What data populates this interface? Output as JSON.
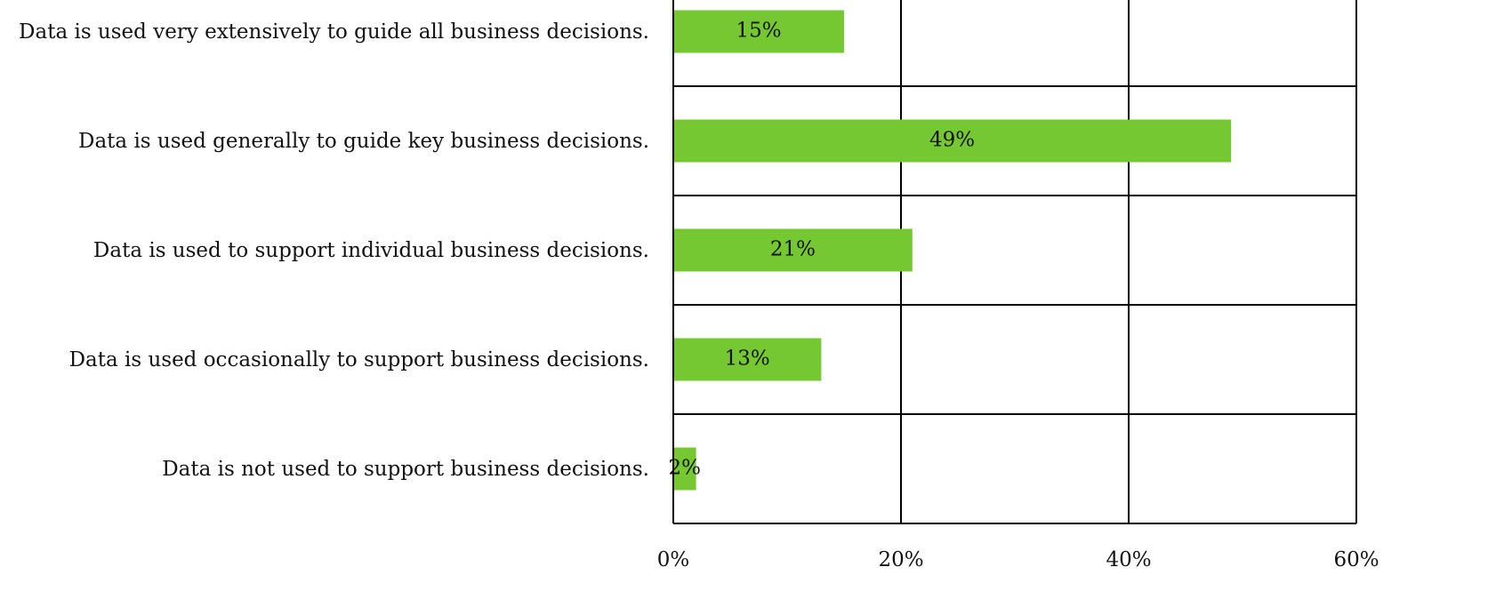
{
  "chart_data": {
    "type": "hbar",
    "categories": [
      "Data is used very extensively to guide all business decisions.",
      "Data is used generally to guide key business decisions.",
      "Data is used to support individual business decisions.",
      "Data is used occasionally to support business decisions.",
      "Data is not used to support business decisions."
    ],
    "values": [
      15,
      49,
      21,
      13,
      2
    ],
    "value_labels": [
      "15%",
      "49%",
      "21%",
      "13%",
      "2%"
    ],
    "color": "#76c832",
    "xlim": [
      0,
      60
    ],
    "xticks": [
      {
        "value": 0,
        "label": "0%"
      },
      {
        "value": 20,
        "label": "20%"
      },
      {
        "value": 40,
        "label": "40%"
      },
      {
        "value": 60,
        "label": "60%"
      }
    ],
    "grid": true
  }
}
